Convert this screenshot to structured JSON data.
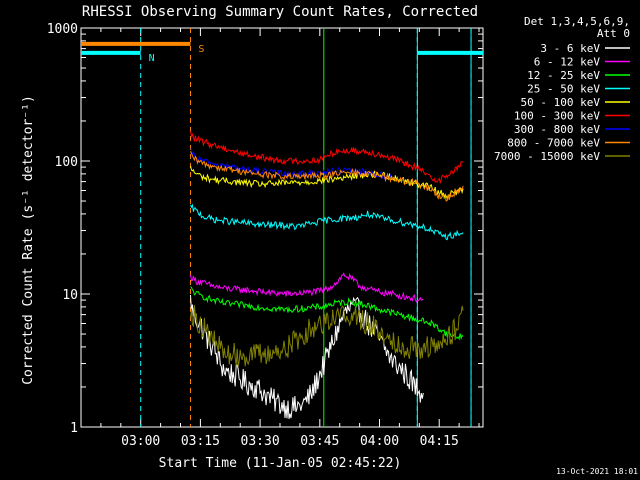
{
  "chart_data": {
    "type": "line",
    "title": "RHESSI Observing Summary Count Rates, Corrected",
    "xlabel": "Start Time (11-Jan-05 02:45:22)",
    "ylabel": "Corrected Count Rate (s⁻¹ detector⁻¹)",
    "x_unit": "minutes since 02:45:22",
    "xlim": [
      0,
      101
    ],
    "ylim": [
      1,
      1000
    ],
    "y_scale": "log",
    "x_ticks": [
      {
        "t": 15,
        "label": "03:00"
      },
      {
        "t": 30,
        "label": "03:15"
      },
      {
        "t": 45,
        "label": "03:30"
      },
      {
        "t": 60,
        "label": "03:45"
      },
      {
        "t": 75,
        "label": "04:00"
      },
      {
        "t": 90,
        "label": "04:15"
      }
    ],
    "y_ticks": [
      {
        "v": 1,
        "label": "1"
      },
      {
        "v": 10,
        "label": "10"
      },
      {
        "v": 100,
        "label": "100"
      },
      {
        "v": 1000,
        "label": "1000"
      }
    ],
    "legend_header": [
      "Det 1,3,4,5,6,9,",
      "Att 0"
    ],
    "legend_position": "right",
    "timestamp": "13-Oct-2021 18:01",
    "series": [
      {
        "name": "3 - 6 keV",
        "color": "#ffffff",
        "x": [
          27.5,
          28,
          29,
          30,
          31,
          32,
          33,
          34,
          35,
          36,
          38,
          40,
          42,
          44,
          46,
          48,
          50,
          52,
          54,
          56,
          58,
          60,
          62,
          64,
          66,
          68,
          70,
          72,
          74,
          76,
          78,
          80,
          82,
          84,
          86
        ],
        "y": [
          9,
          7.5,
          6.5,
          6,
          5,
          4.5,
          4,
          3.5,
          3,
          2.7,
          2.5,
          2.3,
          2.1,
          2,
          1.8,
          1.6,
          1.5,
          1.4,
          1.4,
          1.5,
          1.8,
          2.5,
          3.5,
          5,
          7,
          8,
          7.5,
          6,
          5,
          4,
          3.2,
          2.8,
          2.4,
          2,
          1.8
        ]
      },
      {
        "name": "6 - 12 keV",
        "color": "#ff00ff",
        "x": [
          27.5,
          29,
          31,
          33,
          36,
          40,
          44,
          48,
          52,
          56,
          60,
          62,
          64,
          66,
          68,
          70,
          72,
          74,
          78,
          82,
          86
        ],
        "y": [
          13.5,
          12.5,
          12,
          11.5,
          11,
          10.8,
          10.5,
          10.2,
          10,
          10.2,
          10.5,
          11,
          12,
          14,
          13,
          11.5,
          11,
          10.5,
          10,
          9.5,
          9
        ]
      },
      {
        "name": "12 - 25 keV",
        "color": "#00ff00",
        "x": [
          27.5,
          29,
          31,
          33,
          36,
          40,
          44,
          48,
          52,
          56,
          60,
          64,
          68,
          72,
          76,
          80,
          84,
          88,
          90,
          92,
          94,
          96
        ],
        "y": [
          11,
          10,
          9.5,
          9,
          8.5,
          8.3,
          8,
          7.8,
          7.6,
          7.8,
          8,
          8.5,
          8.8,
          8.2,
          7.5,
          7,
          6.5,
          6,
          5.5,
          5,
          4.8,
          4.8
        ]
      },
      {
        "name": "25 - 50 keV",
        "color": "#00ffff",
        "x": [
          27.5,
          29,
          31,
          34,
          38,
          42,
          46,
          50,
          54,
          58,
          62,
          66,
          70,
          72,
          74,
          78,
          82,
          86,
          88,
          90,
          92,
          94,
          96
        ],
        "y": [
          45,
          42,
          38,
          36,
          35,
          34,
          33,
          33,
          32,
          34,
          36,
          37,
          38,
          40,
          38,
          36,
          34,
          32,
          30,
          28,
          27,
          28,
          29
        ]
      },
      {
        "name": "50 - 100 keV",
        "color": "#ffff00",
        "x": [
          27.5,
          29,
          31,
          34,
          38,
          42,
          46,
          50,
          54,
          58,
          62,
          66,
          70,
          74,
          78,
          82,
          86,
          88,
          90,
          92,
          94,
          96
        ],
        "y": [
          88,
          80,
          75,
          72,
          70,
          68,
          67,
          68,
          69,
          70,
          72,
          75,
          78,
          80,
          76,
          70,
          66,
          63,
          58,
          55,
          58,
          62
        ]
      },
      {
        "name": "100 - 300 keV",
        "color": "#ff0000",
        "x": [
          27.5,
          29,
          32,
          36,
          40,
          44,
          48,
          52,
          56,
          60,
          64,
          68,
          72,
          76,
          80,
          84,
          86,
          88,
          90,
          92,
          94,
          96
        ],
        "y": [
          160,
          145,
          135,
          125,
          115,
          108,
          103,
          100,
          100,
          102,
          118,
          120,
          118,
          110,
          100,
          90,
          82,
          75,
          72,
          78,
          85,
          98
        ]
      },
      {
        "name": "300 - 800 keV",
        "color": "#0000ff",
        "x": [
          27.5,
          29,
          32,
          36,
          40,
          44,
          48,
          52,
          56,
          60,
          64,
          68,
          72,
          76,
          78
        ],
        "y": [
          118,
          105,
          97,
          92,
          88,
          84,
          82,
          80,
          80,
          82,
          84,
          84,
          82,
          78,
          75
        ]
      },
      {
        "name": "800 - 7000 keV",
        "color": "#ff8800",
        "x": [
          27.5,
          29,
          32,
          36,
          40,
          44,
          48,
          52,
          56,
          60,
          64,
          68,
          72,
          76,
          80,
          84,
          86,
          88,
          90,
          92,
          94,
          96
        ],
        "y": [
          112,
          100,
          93,
          88,
          84,
          80,
          78,
          76,
          76,
          78,
          80,
          82,
          80,
          76,
          72,
          68,
          64,
          60,
          55,
          52,
          58,
          65
        ]
      },
      {
        "name": "7000 - 15000 keV",
        "color": "#808000",
        "x": [
          27.5,
          28,
          29,
          30,
          31,
          32,
          33,
          34,
          35,
          36,
          38,
          40,
          42,
          44,
          46,
          48,
          50,
          52,
          54,
          56,
          58,
          60,
          62,
          64,
          66,
          68,
          70,
          72,
          74,
          76,
          78,
          80,
          82,
          84,
          86,
          88,
          90,
          92,
          94,
          96
        ],
        "y": [
          8,
          7,
          6.5,
          6,
          5.5,
          5,
          4.5,
          4.2,
          4,
          3.6,
          3.5,
          3.5,
          3.5,
          3.5,
          3.5,
          3.6,
          3.8,
          4,
          4.5,
          5,
          5.5,
          6,
          6.5,
          6.8,
          7,
          7,
          6.5,
          6,
          5.5,
          5,
          4.5,
          4.2,
          4,
          4,
          4,
          4,
          4,
          4.5,
          5.5,
          7.5
        ]
      }
    ],
    "bars": [
      {
        "label": "N",
        "color": "#00ffff",
        "y": 650,
        "segments": [
          [
            0,
            15
          ],
          [
            84.5,
            101
          ]
        ],
        "boundaries": [
          15,
          84.5,
          98
        ],
        "label_t": 17
      },
      {
        "label": "S",
        "color": "#ff8800",
        "y": 760,
        "segments": [
          [
            0,
            27.5
          ]
        ],
        "boundaries": [
          27.5
        ],
        "label_t": 29.5
      }
    ],
    "markers": [
      {
        "t": 61,
        "color": "#00ff00"
      },
      {
        "t": 84.5,
        "color": "#00ffff"
      },
      {
        "t": 98,
        "color": "#00ffff"
      }
    ]
  }
}
